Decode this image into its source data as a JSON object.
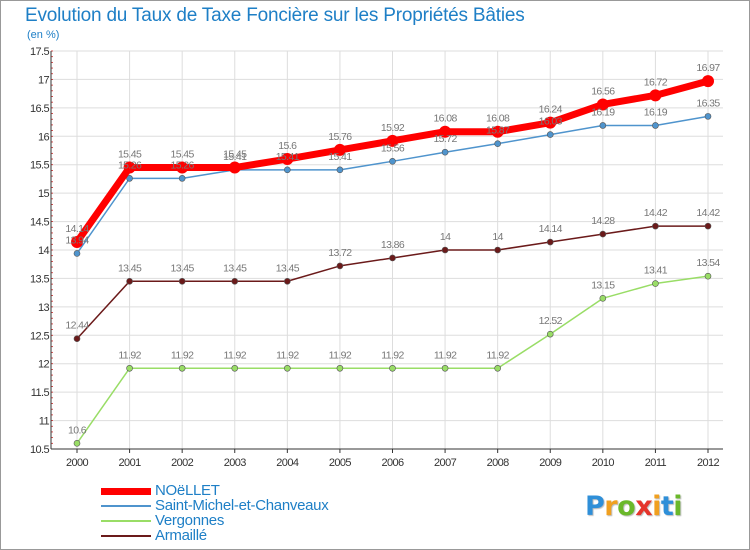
{
  "title": "Evolution du Taux de Taxe Foncière sur les Propriétés Bâties",
  "unit": "(en %)",
  "logo": {
    "letters": [
      "P",
      "r",
      "o",
      "x",
      "i",
      "t",
      "i"
    ],
    "colors": [
      "#2f8fd8",
      "#f0a020",
      "#6ab82a",
      "#e5342b",
      "#f0a020",
      "#2f8fd8",
      "#6ab82a"
    ]
  },
  "chart_data": {
    "type": "line",
    "title": "Evolution du Taux de Taxe Foncière sur les Propriétés Bâties",
    "ylabel": "(en %)",
    "xlabel": "",
    "x": [
      "2000",
      "2001",
      "2002",
      "2003",
      "2004",
      "2005",
      "2006",
      "2007",
      "2008",
      "2009",
      "2010",
      "2011",
      "2012"
    ],
    "ylim": [
      10.5,
      17.5
    ],
    "yticks": [
      "10.5",
      "11",
      "11.5",
      "12",
      "12.5",
      "13",
      "13.5",
      "14",
      "14.5",
      "15",
      "15.5",
      "16",
      "16.5",
      "17",
      "17.5"
    ],
    "grid": true,
    "legend_position": "bottom-left",
    "series": [
      {
        "name": "Armaillé",
        "color": "#6b1a1a",
        "values": [
          12.44,
          13.45,
          13.45,
          13.45,
          13.45,
          13.72,
          13.86,
          14,
          14,
          14.14,
          14.28,
          14.42,
          14.42
        ],
        "labels": [
          "12.44",
          "13.45",
          "13.45",
          "13.45",
          "13.45",
          "13.72",
          "13.86",
          "14",
          "14",
          "14.14",
          "14.28",
          "14.42",
          "14.42"
        ]
      },
      {
        "name": "Vergonnes",
        "color": "#99dd66",
        "values": [
          10.6,
          11.92,
          11.92,
          11.92,
          11.92,
          11.92,
          11.92,
          11.92,
          11.92,
          12.52,
          13.15,
          13.41,
          13.54
        ],
        "labels": [
          "10.6",
          "11.92",
          "11.92",
          "11.92",
          "11.92",
          "11.92",
          "11.92",
          "11.92",
          "11.92",
          "12.52",
          "13.15",
          "13.41",
          "13.54"
        ]
      },
      {
        "name": "Saint-Michel-et-Chanveaux",
        "color": "#4f94cd",
        "values": [
          13.94,
          15.26,
          15.26,
          15.41,
          15.41,
          15.41,
          15.56,
          15.72,
          15.87,
          16.03,
          16.19,
          16.19,
          16.35
        ],
        "labels": [
          "13.94",
          "15.26",
          "15.26",
          "15.41",
          "15.41",
          "15.41",
          "15.56",
          "15.72",
          "15.87",
          "16.03",
          "16.19",
          "16.19",
          "16.35"
        ]
      },
      {
        "name": "NOëLLET",
        "color": "#ff0000",
        "values": [
          14.14,
          15.45,
          15.45,
          15.45,
          15.6,
          15.76,
          15.92,
          16.08,
          16.08,
          16.24,
          16.56,
          16.72,
          16.97
        ],
        "labels": [
          "14.14",
          "15.45",
          "15.45",
          "15.45",
          "15.6",
          "15.76",
          "15.92",
          "16.08",
          "16.08",
          "16.24",
          "16.56",
          "16.72",
          "16.97"
        ]
      }
    ],
    "legend": [
      {
        "name": "NOëLLET",
        "color": "#ff0000"
      },
      {
        "name": "Saint-Michel-et-Chanveaux",
        "color": "#4f94cd"
      },
      {
        "name": "Vergonnes",
        "color": "#99dd66"
      },
      {
        "name": "Armaillé",
        "color": "#6b1a1a"
      }
    ]
  }
}
